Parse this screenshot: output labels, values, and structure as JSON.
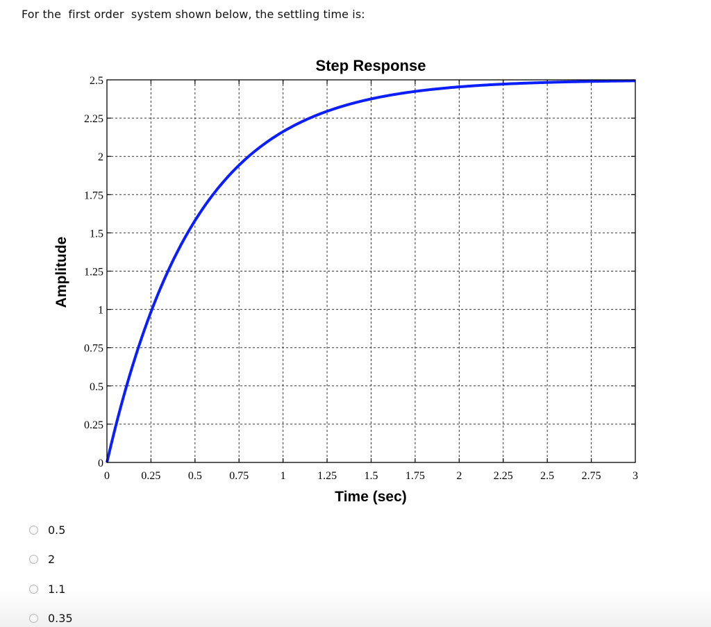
{
  "question": {
    "text": "For the  first order  system shown below, the settling time is:"
  },
  "chart_data": {
    "type": "line",
    "title": "Step Response",
    "xlabel": "Time (sec)",
    "ylabel": "Amplitude",
    "xlim": [
      0,
      3
    ],
    "ylim": [
      0,
      2.5
    ],
    "grid": true,
    "grid_style": "dashed",
    "x_ticks": [
      "0",
      "0.25",
      "0.5",
      "0.75",
      "1",
      "1.25",
      "1.5",
      "1.75",
      "2",
      "2.25",
      "2.5",
      "2.75",
      "3"
    ],
    "y_ticks": [
      "0",
      "0.25",
      "0.5",
      "0.75",
      "1",
      "1.25",
      "1.5",
      "1.75",
      "2",
      "2.25",
      "2.5"
    ],
    "series": [
      {
        "name": "Step Response",
        "color": "#0a1eff",
        "model": "y(t) = 2.5 * (1 - exp(-t/0.5))",
        "x": [
          0,
          0.25,
          0.5,
          0.75,
          1,
          1.25,
          1.5,
          1.75,
          2,
          2.25,
          2.5,
          2.75,
          3
        ],
        "y": [
          0,
          0.98,
          1.58,
          1.94,
          2.16,
          2.3,
          2.38,
          2.43,
          2.45,
          2.47,
          2.48,
          2.49,
          2.49
        ]
      }
    ],
    "legend": null
  },
  "options": [
    {
      "label": "0.5",
      "selected": false
    },
    {
      "label": "2",
      "selected": false
    },
    {
      "label": "1.1",
      "selected": false
    },
    {
      "label": "0.35",
      "selected": false
    }
  ]
}
